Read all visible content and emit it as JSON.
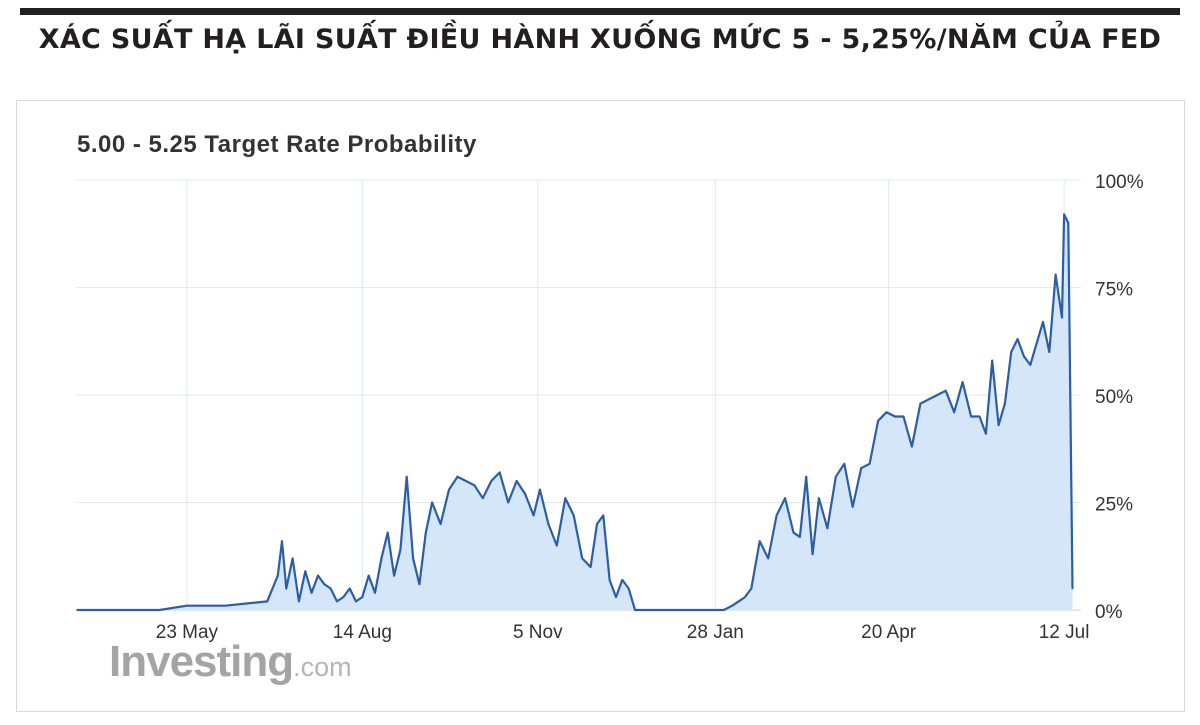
{
  "headline": "XÁC SUẤT HẠ LÃI SUẤT ĐIỀU HÀNH XUỐNG MỨC 5 - 5,25%/NĂM CỦA FED",
  "watermark": {
    "brand": "Investing",
    "suffix": ".com"
  },
  "colors": {
    "line": "#2b5ea8",
    "fill": "#d4e6f7",
    "grid": "#e3e8ee",
    "axis_text": "#333333",
    "rule": "#231f20"
  },
  "chart_data": {
    "type": "area",
    "title": "5.00 - 5.25 Target Rate Probability",
    "xlabel": "",
    "ylabel": "",
    "x_tick_labels": [
      "23 May",
      "14 Aug",
      "5 Nov",
      "28 Jan",
      "20 Apr",
      "12 Jul"
    ],
    "y_tick_labels": [
      "100%",
      "75%",
      "50%",
      "25%",
      "0%"
    ],
    "y_ticks": [
      100,
      75,
      50,
      25,
      0
    ],
    "ylim": [
      0,
      100
    ],
    "grid": true,
    "y_axis_position": "right",
    "series": [
      {
        "x": [
          "2022-04-01",
          "2022-04-20",
          "2022-05-10",
          "2022-05-23",
          "2022-06-10",
          "2022-06-30",
          "2022-07-05",
          "2022-07-07",
          "2022-07-09",
          "2022-07-12",
          "2022-07-15",
          "2022-07-18",
          "2022-07-21",
          "2022-07-24",
          "2022-07-27",
          "2022-07-30",
          "2022-08-02",
          "2022-08-05",
          "2022-08-08",
          "2022-08-11",
          "2022-08-14",
          "2022-08-17",
          "2022-08-20",
          "2022-08-23",
          "2022-08-26",
          "2022-08-29",
          "2022-09-01",
          "2022-09-04",
          "2022-09-07",
          "2022-09-10",
          "2022-09-13",
          "2022-09-16",
          "2022-09-20",
          "2022-09-24",
          "2022-09-28",
          "2022-10-02",
          "2022-10-06",
          "2022-10-10",
          "2022-10-14",
          "2022-10-18",
          "2022-10-22",
          "2022-10-26",
          "2022-10-30",
          "2022-11-03",
          "2022-11-06",
          "2022-11-10",
          "2022-11-14",
          "2022-11-18",
          "2022-11-22",
          "2022-11-26",
          "2022-11-30",
          "2022-12-03",
          "2022-12-06",
          "2022-12-09",
          "2022-12-12",
          "2022-12-15",
          "2022-12-18",
          "2022-12-21",
          "2022-12-24",
          "2022-12-28",
          "2023-01-05",
          "2023-01-15",
          "2023-01-25",
          "2023-02-01",
          "2023-02-05",
          "2023-02-08",
          "2023-02-11",
          "2023-02-14",
          "2023-02-18",
          "2023-02-22",
          "2023-02-26",
          "2023-03-02",
          "2023-03-06",
          "2023-03-09",
          "2023-03-12",
          "2023-03-15",
          "2023-03-18",
          "2023-03-22",
          "2023-03-26",
          "2023-03-30",
          "2023-04-03",
          "2023-04-07",
          "2023-04-11",
          "2023-04-15",
          "2023-04-19",
          "2023-04-23",
          "2023-04-27",
          "2023-05-01",
          "2023-05-05",
          "2023-05-09",
          "2023-05-13",
          "2023-05-17",
          "2023-05-21",
          "2023-05-25",
          "2023-05-29",
          "2023-06-02",
          "2023-06-05",
          "2023-06-08",
          "2023-06-11",
          "2023-06-14",
          "2023-06-17",
          "2023-06-20",
          "2023-06-23",
          "2023-06-26",
          "2023-06-29",
          "2023-07-02",
          "2023-07-05",
          "2023-07-08",
          "2023-07-11",
          "2023-07-12",
          "2023-07-14",
          "2023-07-16"
        ],
        "y": [
          0,
          0,
          0,
          1,
          1,
          2,
          8,
          16,
          5,
          12,
          2,
          9,
          4,
          8,
          6,
          5,
          2,
          3,
          5,
          2,
          3,
          8,
          4,
          12,
          18,
          8,
          14,
          31,
          12,
          6,
          18,
          25,
          20,
          28,
          31,
          30,
          29,
          26,
          30,
          32,
          25,
          30,
          27,
          22,
          28,
          20,
          15,
          26,
          22,
          12,
          10,
          20,
          22,
          7,
          3,
          7,
          5,
          0,
          0,
          0,
          0,
          0,
          0,
          0,
          1,
          2,
          3,
          5,
          16,
          12,
          22,
          26,
          18,
          17,
          31,
          13,
          26,
          19,
          31,
          34,
          24,
          33,
          34,
          44,
          46,
          45,
          45,
          38,
          48,
          49,
          50,
          51,
          46,
          53,
          45,
          45,
          41,
          58,
          43,
          48,
          60,
          63,
          59,
          57,
          62,
          67,
          60,
          78,
          68,
          92,
          90,
          5
        ]
      }
    ]
  }
}
